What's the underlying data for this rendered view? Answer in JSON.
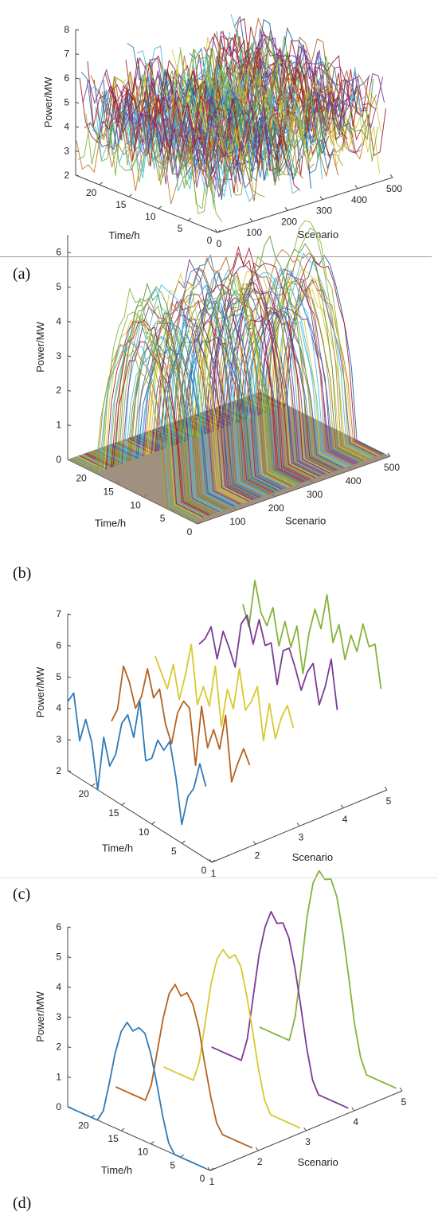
{
  "panel_labels": [
    "(a)",
    "(b)",
    "(c)",
    "(d)"
  ],
  "chart_data": [
    {
      "type": "line3d",
      "panel": "(a)",
      "zlabel": "Power/MW",
      "xlabel": "Time/h",
      "ylabel": "Scenario",
      "time_ticks": [
        "0",
        "5",
        "10",
        "15",
        "20"
      ],
      "scenario_ticks": [
        "0",
        "100",
        "200",
        "300",
        "400",
        "500"
      ],
      "power_ticks": [
        "2",
        "3",
        "4",
        "5",
        "6",
        "7",
        "8"
      ],
      "time_range": [
        0,
        24
      ],
      "scenario_range": [
        0,
        500
      ],
      "power_range": [
        2,
        8
      ],
      "num_scenarios": 500,
      "profile": "flat",
      "series_mean_range": [
        3.5,
        5.5
      ],
      "series_amplitude": 1.5
    },
    {
      "type": "line3d",
      "panel": "(b)",
      "zlabel": "Power/MW",
      "xlabel": "Time/h",
      "ylabel": "Scenario",
      "time_ticks": [
        "0",
        "5",
        "10",
        "15",
        "20"
      ],
      "scenario_ticks": [
        "100",
        "200",
        "300",
        "400",
        "500"
      ],
      "power_ticks": [
        "0",
        "1",
        "2",
        "3",
        "4",
        "5",
        "6"
      ],
      "time_range": [
        0,
        24
      ],
      "scenario_range": [
        0,
        500
      ],
      "power_range": [
        0,
        6.5
      ],
      "num_scenarios": 500,
      "profile": "solar",
      "daylight_hours": [
        6,
        19
      ],
      "series_peak_range": [
        3.8,
        6.2
      ]
    },
    {
      "type": "line3d",
      "panel": "(c)",
      "zlabel": "Power/MW",
      "xlabel": "Time/h",
      "ylabel": "Scenario",
      "time_ticks": [
        "0",
        "5",
        "10",
        "15",
        "20"
      ],
      "scenario_ticks": [
        "1",
        "2",
        "3",
        "4",
        "5"
      ],
      "power_ticks": [
        "2",
        "3",
        "4",
        "5",
        "6",
        "7"
      ],
      "time_range": [
        0,
        24
      ],
      "scenario_range": [
        1,
        5
      ],
      "power_range": [
        2,
        7
      ],
      "time_points": [
        1,
        2,
        3,
        4,
        5,
        6,
        7,
        8,
        9,
        10,
        11,
        12,
        13,
        14,
        15,
        16,
        17,
        18,
        19,
        20,
        21,
        22,
        23,
        24
      ],
      "series": [
        {
          "scenario": 1,
          "color": "#2f7ab8",
          "values": [
            4.3,
            4.9,
            4.0,
            3.6,
            2.6,
            4.0,
            5.0,
            4.6,
            4.8,
            4.1,
            3.9,
            5.7,
            4.4,
            5.0,
            4.6,
            3.5,
            3.0,
            3.8,
            2.0,
            3.4,
            4.0,
            3.2,
            4.6,
            4.2
          ]
        },
        {
          "scenario": 2,
          "color": "#b5621f",
          "values": [
            4.4,
            4.8,
            4.2,
            3.5,
            5.5,
            4.3,
            4.8,
            4.1,
            5.3,
            3.3,
            5.0,
            5.1,
            4.6,
            3.5,
            4.0,
            5.0,
            4.6,
            5.4,
            4.4,
            3.9,
            4.6,
            5.0,
            3.5,
            3.0
          ]
        },
        {
          "scenario": 3,
          "color": "#d8c92e",
          "values": [
            5.0,
            5.6,
            5.1,
            4.3,
            5.3,
            4.0,
            5.6,
            5.0,
            4.6,
            5.8,
            4.4,
            4.9,
            3.6,
            5.4,
            4.0,
            4.5,
            3.8,
            5.6,
            4.5,
            3.6,
            4.6,
            3.7,
            4.1,
            4.5
          ]
        },
        {
          "scenario": 4,
          "color": "#7b3b94",
          "values": [
            5.0,
            6.5,
            5.5,
            4.8,
            6.0,
            5.6,
            4.9,
            5.5,
            6.0,
            5.8,
            4.6,
            5.8,
            5.6,
            6.3,
            5.4,
            6.2,
            5.8,
            4.3,
            4.8,
            5.2,
            4.2,
            5.1,
            4.6,
            4.3
          ]
        },
        {
          "scenario": 5,
          "color": "#86b33d",
          "values": [
            5.1,
            6.4,
            6.2,
            6.8,
            5.8,
            6.2,
            5.3,
            6.3,
            5.6,
            7.0,
            5.8,
            6.3,
            5.4,
            4.0,
            5.4,
            4.6,
            5.3,
            4.4,
            5.5,
            4.8,
            5.1,
            6.0,
            4.4,
            5.0
          ]
        }
      ]
    },
    {
      "type": "line3d",
      "panel": "(d)",
      "zlabel": "Power/MW",
      "xlabel": "Time/h",
      "ylabel": "Scenario",
      "time_ticks": [
        "0",
        "5",
        "10",
        "15",
        "20"
      ],
      "scenario_ticks": [
        "1",
        "2",
        "3",
        "4",
        "5"
      ],
      "power_ticks": [
        "0",
        "1",
        "2",
        "3",
        "4",
        "5",
        "6"
      ],
      "time_range": [
        0,
        24
      ],
      "scenario_range": [
        1,
        5
      ],
      "power_range": [
        0,
        6
      ],
      "time_points": [
        1,
        2,
        3,
        4,
        5,
        6,
        7,
        8,
        9,
        10,
        11,
        12,
        13,
        14,
        15,
        16,
        17,
        18,
        19,
        20,
        21,
        22,
        23,
        24
      ],
      "series": [
        {
          "scenario": 1,
          "color": "#2f7ab8",
          "values": [
            0,
            0,
            0,
            0,
            0,
            0,
            0.3,
            1.1,
            2.1,
            3.0,
            3.6,
            3.7,
            3.5,
            3.7,
            3.3,
            2.5,
            1.4,
            0.4,
            0,
            0,
            0,
            0,
            0,
            0
          ]
        },
        {
          "scenario": 2,
          "color": "#b5621f",
          "values": [
            0,
            0,
            0,
            0,
            0,
            0,
            0.3,
            1.1,
            2.1,
            3.2,
            3.9,
            4.2,
            4.0,
            4.3,
            3.9,
            3.0,
            1.8,
            0.6,
            0,
            0,
            0,
            0,
            0,
            0
          ]
        },
        {
          "scenario": 3,
          "color": "#d8c92e",
          "values": [
            0,
            0,
            0,
            0,
            0,
            0,
            0.4,
            1.3,
            2.5,
            3.6,
            4.5,
            4.8,
            4.6,
            4.8,
            4.4,
            3.5,
            2.1,
            0.7,
            0,
            0,
            0,
            0,
            0,
            0
          ]
        },
        {
          "scenario": 4,
          "color": "#7b3b94",
          "values": [
            0,
            0,
            0,
            0,
            0,
            0,
            0.4,
            1.4,
            2.7,
            3.9,
            4.8,
            5.2,
            5.1,
            5.4,
            4.8,
            3.8,
            2.3,
            0.8,
            0,
            0,
            0,
            0,
            0,
            0
          ]
        },
        {
          "scenario": 5,
          "color": "#86b33d",
          "values": [
            0,
            0,
            0,
            0,
            0,
            0,
            0.5,
            1.5,
            3.0,
            4.4,
            5.5,
            6.0,
            5.9,
            6.1,
            5.6,
            4.4,
            2.6,
            0.9,
            0,
            0,
            0,
            0,
            0,
            0
          ]
        }
      ]
    }
  ]
}
